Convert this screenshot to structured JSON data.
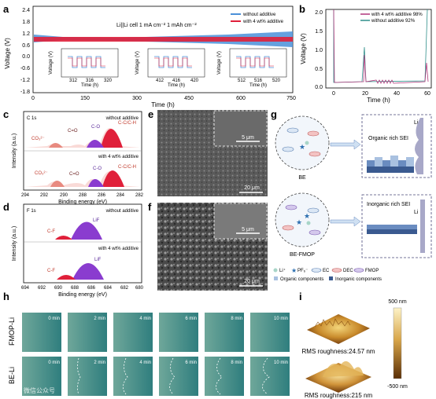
{
  "panels": {
    "a": {
      "label": "a",
      "title": "Li||Li cell 1 mA cm⁻² 1 mAh cm⁻²",
      "xlabel": "Time (h)",
      "ylabel": "Voltage (V)",
      "xticks": [
        "0",
        "150",
        "300",
        "450",
        "600",
        "750"
      ],
      "yticks": [
        "2.4",
        "1.8",
        "1.2",
        "0.6",
        "0.0",
        "-0.6",
        "-1.2",
        "-1.8"
      ],
      "legend": [
        "without additive",
        "with 4 wt% additive"
      ],
      "insets": [
        {
          "ticks": [
            "312",
            "316",
            "320"
          ],
          "xlabel": "Time (h)",
          "ylabel": "Voltage (V)",
          "yticks": [
            "0.2",
            "0.1",
            "0.0",
            "-0.1",
            "-0.2"
          ]
        },
        {
          "ticks": [
            "412",
            "416",
            "420"
          ],
          "xlabel": "Time (h)",
          "ylabel": "Voltage (V)",
          "yticks": [
            "0.2",
            "0.1",
            "0.0",
            "-0.1",
            "-0.2"
          ]
        },
        {
          "ticks": [
            "512",
            "516",
            "520"
          ],
          "xlabel": "Time (h)",
          "ylabel": "Voltage (V)",
          "yticks": [
            "0.2",
            "0.1",
            "0.0",
            "-0.1",
            "-0.2"
          ]
        }
      ]
    },
    "b": {
      "label": "b",
      "xlabel": "Time (h)",
      "ylabel": "Voltage (V)",
      "xticks": [
        "0",
        "20",
        "40",
        "60"
      ],
      "yticks": [
        "2.0",
        "1.5",
        "1.0",
        "0.5",
        "0.0"
      ],
      "legend": [
        "with 4 wt% additive 98%",
        "without additive 92%"
      ]
    },
    "c": {
      "label": "c",
      "element": "C 1s",
      "top_note": "without additive",
      "bottom_note": "with 4 wt% additive",
      "peaks": [
        "CO₃²⁻",
        "C=O",
        "C-O",
        "C-C/C-H"
      ],
      "xlabel": "Binding energy (eV)",
      "ylabel": "Intensity (a.u.)",
      "xticks": [
        "294",
        "292",
        "290",
        "288",
        "286",
        "284",
        "282"
      ]
    },
    "d": {
      "label": "d",
      "element": "F 1s",
      "top_note": "without additive",
      "bottom_note": "with 4 wt% additive",
      "peaks": [
        "C-F",
        "LiF"
      ],
      "xlabel": "Binding energy (eV)",
      "ylabel": "Intensity (a.u.)",
      "xticks": [
        "694",
        "692",
        "690",
        "688",
        "686",
        "684",
        "682",
        "680"
      ]
    },
    "e": {
      "label": "e",
      "inset_scale": "5 μm",
      "scale": "20 μm"
    },
    "f": {
      "label": "f",
      "inset_scale": "5 μm",
      "scale": "20 μm"
    },
    "g": {
      "label": "g",
      "top_electrolyte": "BE",
      "bottom_electrolyte": "BE-FMOP",
      "top_sei": "Organic rich SEI",
      "bottom_sei": "Inorganic rich SEI",
      "li_top": "Li",
      "li_bottom": "Li",
      "legend_row1": [
        "Li⁺",
        "PF₆⁻",
        "EC",
        "DEC",
        "FMOP"
      ],
      "legend_row2": [
        "Organic components",
        "Inorganic components"
      ]
    },
    "h": {
      "label": "h",
      "row1": "FMOP-Li",
      "row2": "BE-Li",
      "times": [
        "0 min",
        "2 min",
        "4 min",
        "6 min",
        "8 min",
        "10 min"
      ],
      "watermark": "微信公众号"
    },
    "i": {
      "label": "i",
      "top_caption": "RMS roughness:24.57 nm",
      "bottom_caption": "RMS roughness:215 nm",
      "scale_max": "500 nm",
      "scale_min": "-500 nm"
    }
  },
  "colors": {
    "blue": "#4a90d9",
    "red": "#e0203a",
    "purple": "#8a3ccf",
    "teal": "#2f8f8a"
  }
}
